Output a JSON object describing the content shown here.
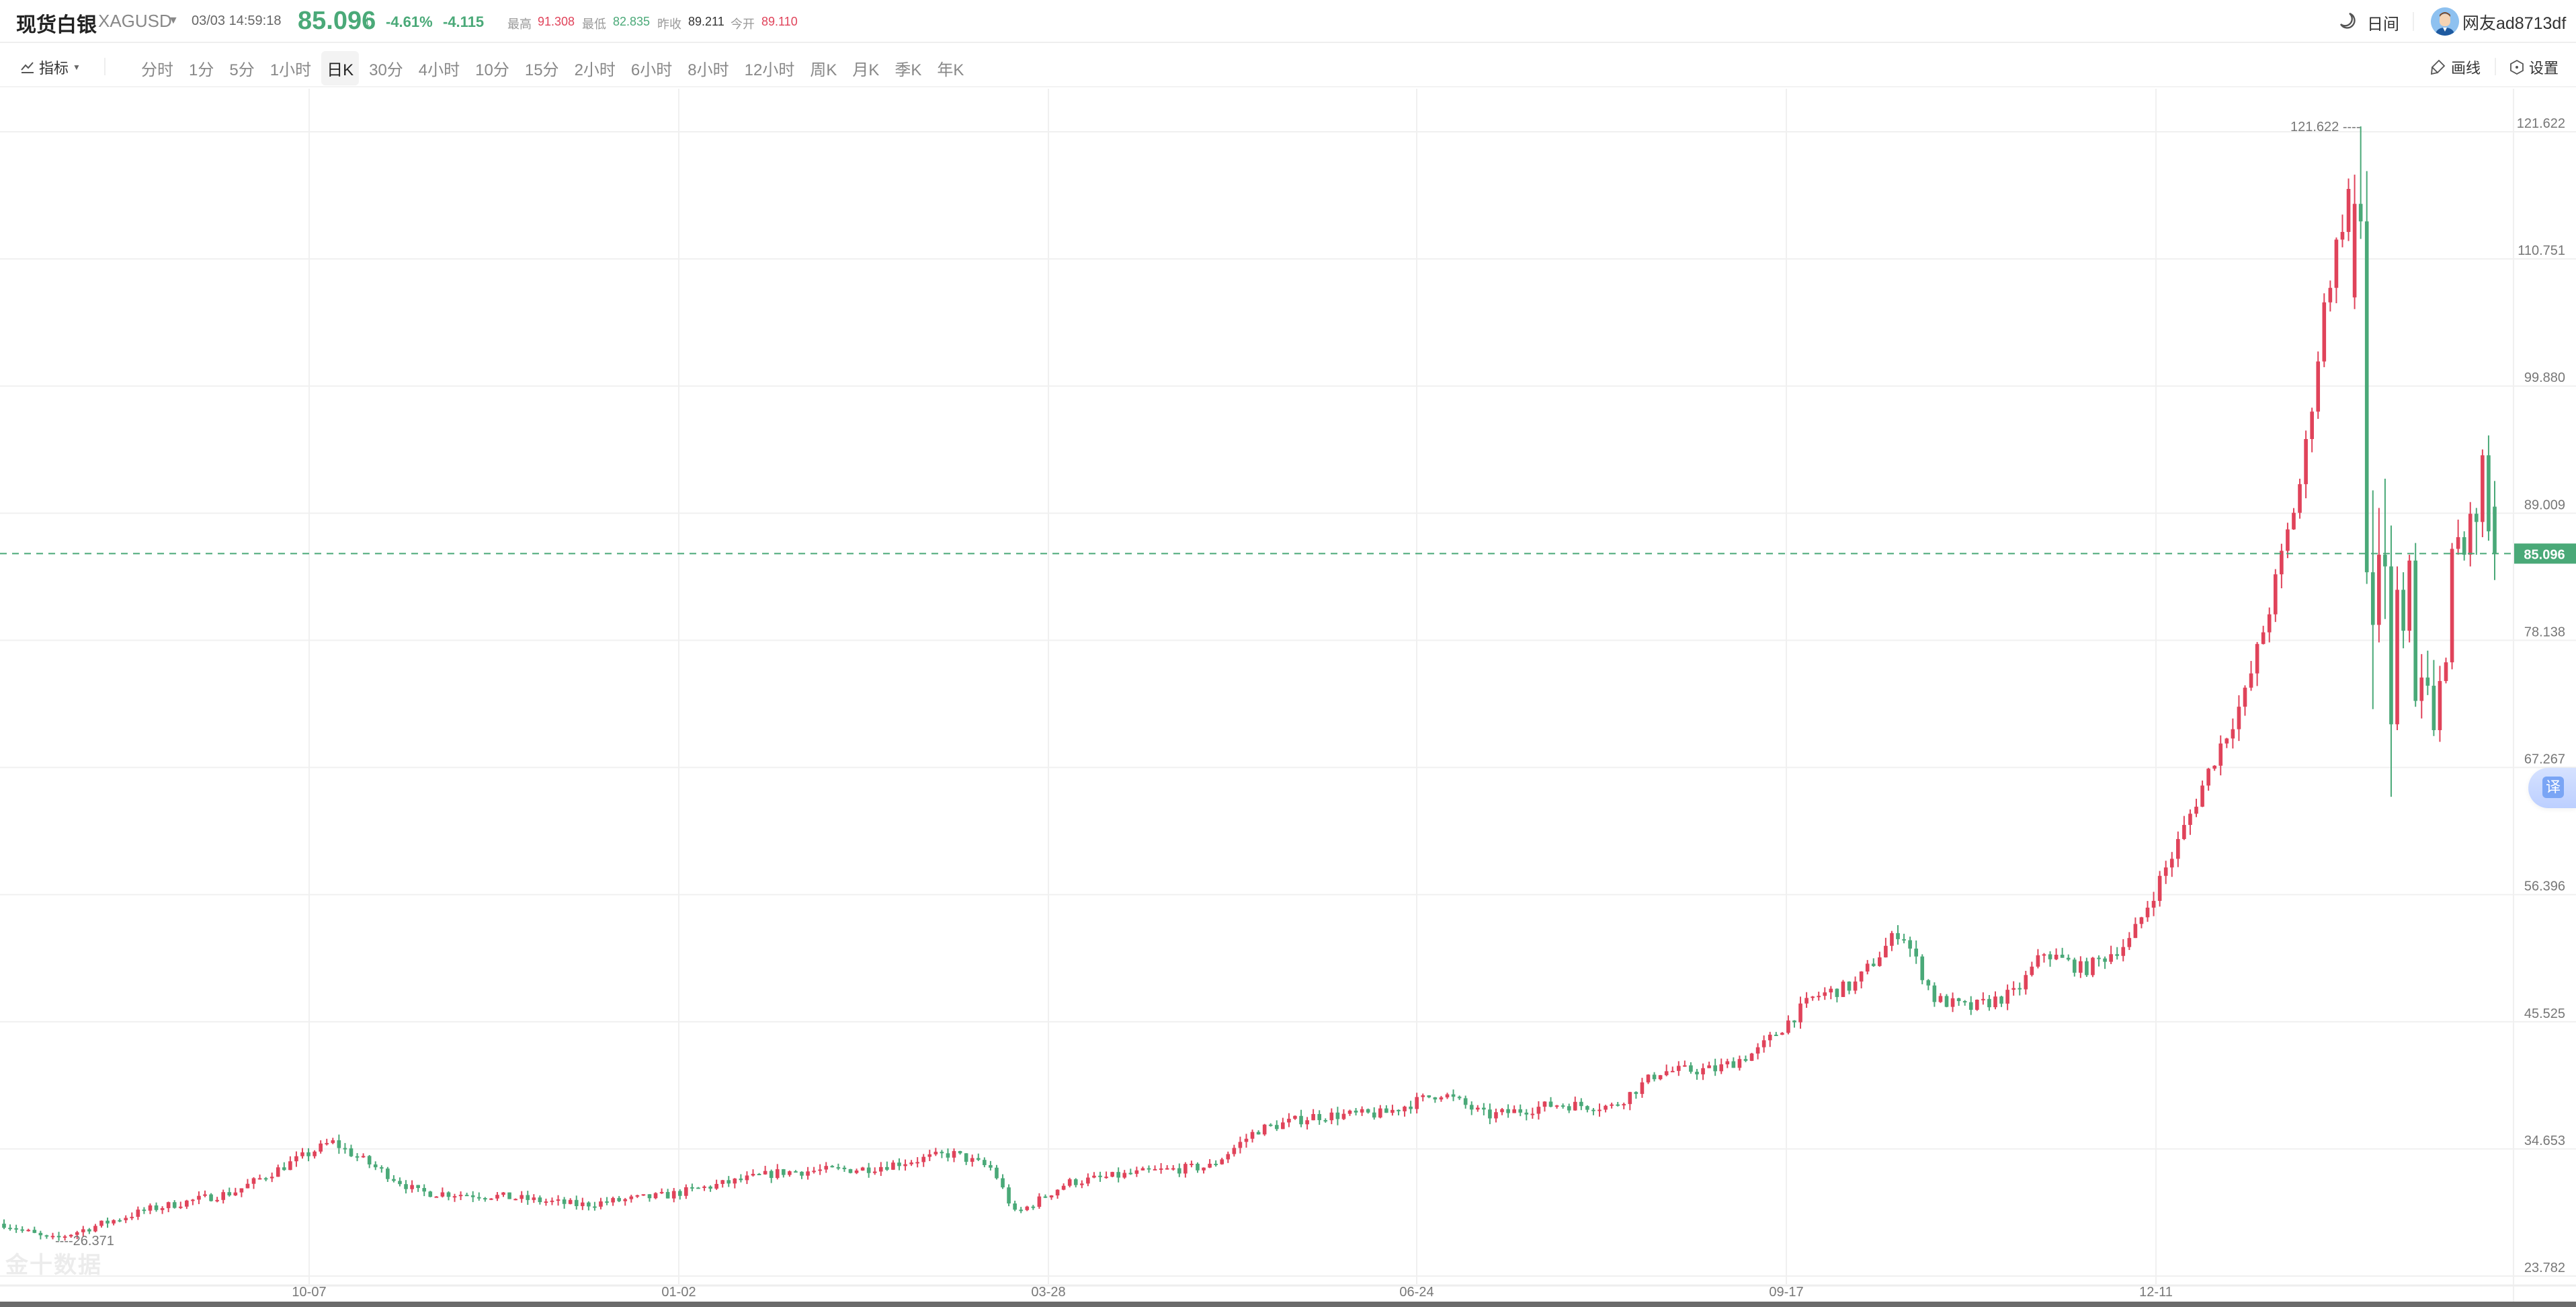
{
  "header": {
    "title": "现货白银",
    "symbol": "XAGUSD",
    "datetime": "03/03 14:59:18",
    "price": "85.096",
    "direction_icon": "arrow-down",
    "change_pct": "-4.61%",
    "change": "-4.115",
    "stats": [
      {
        "label": "最高",
        "value": "91.308",
        "color": "red"
      },
      {
        "label": "最低",
        "value": "82.835",
        "color": "green"
      },
      {
        "label": "昨收",
        "value": "89.211",
        "color": "dark"
      },
      {
        "label": "今开",
        "value": "89.110",
        "color": "red"
      }
    ],
    "theme_label": "日间",
    "theme_icon": "moon-icon",
    "username": "网友ad8713df"
  },
  "toolbar": {
    "indicator_label": "指标",
    "periods": [
      "分时",
      "1分",
      "5分",
      "1小时",
      "日K",
      "30分",
      "4小时",
      "10分",
      "15分",
      "2小时",
      "6小时",
      "8小时",
      "12小时",
      "周K",
      "月K",
      "季K",
      "年K"
    ],
    "active_period": "日K",
    "draw_label": "画线",
    "settings_label": "设置"
  },
  "translate_label": "译",
  "watermark": "金十数据",
  "colors": {
    "up": "#e0435a",
    "down": "#4aa978",
    "grid": "#f0f0f0",
    "price_tag": "#4aa978"
  },
  "chart_data": {
    "type": "candlestick",
    "title": "现货白银 XAGUSD 日K",
    "xlabel": "",
    "ylabel": "",
    "y_ticks": [
      "121.622",
      "110.751",
      "99.880",
      "89.009",
      "78.138",
      "67.267",
      "56.396",
      "45.525",
      "34.653",
      "23.782"
    ],
    "x_ticks": [
      "10-07",
      "01-02",
      "03-28",
      "06-24",
      "09-17",
      "12-11"
    ],
    "ylim": [
      23.782,
      121.622
    ],
    "current_price": "85.096",
    "max_annotation": "121.622",
    "min_annotation": "26.371",
    "grid": true,
    "up_color_meaning": "red = rise, green = fall",
    "candle_count": 410,
    "price_path_keypoints": [
      [
        0,
        27.8
      ],
      [
        8,
        26.4
      ],
      [
        25,
        29.0
      ],
      [
        40,
        30.5
      ],
      [
        57,
        34.8
      ],
      [
        72,
        30.5
      ],
      [
        85,
        30.2
      ],
      [
        100,
        29.4
      ],
      [
        115,
        30.2
      ],
      [
        135,
        32.2
      ],
      [
        150,
        32.5
      ],
      [
        165,
        33.8
      ],
      [
        172,
        32.5
      ],
      [
        176,
        28.6
      ],
      [
        185,
        31.3
      ],
      [
        200,
        32.3
      ],
      [
        210,
        32.7
      ],
      [
        218,
        35.8
      ],
      [
        228,
        37.0
      ],
      [
        240,
        37.2
      ],
      [
        250,
        39.0
      ],
      [
        258,
        37.0
      ],
      [
        270,
        38.0
      ],
      [
        280,
        37.8
      ],
      [
        288,
        40.8
      ],
      [
        298,
        41.0
      ],
      [
        305,
        42.5
      ],
      [
        315,
        47.2
      ],
      [
        322,
        48.2
      ],
      [
        330,
        53.0
      ],
      [
        336,
        47.0
      ],
      [
        342,
        46.2
      ],
      [
        350,
        47.5
      ],
      [
        355,
        51.0
      ],
      [
        362,
        49.5
      ],
      [
        370,
        52.0
      ],
      [
        378,
        60.0
      ],
      [
        385,
        68.0
      ],
      [
        390,
        73.0
      ],
      [
        394,
        80.0
      ],
      [
        400,
        92.0
      ],
      [
        404,
        107.0
      ],
      [
        408,
        116.0
      ]
    ],
    "recent_candles_ohlc": [
      [
        107.0,
        117.5,
        106.0,
        115.0
      ],
      [
        115.0,
        121.622,
        112.0,
        113.5
      ],
      [
        113.5,
        117.8,
        82.5,
        83.5
      ],
      [
        83.5,
        90.5,
        71.8,
        79.0
      ],
      [
        79.0,
        89.0,
        77.5,
        85.0
      ],
      [
        85.0,
        91.5,
        79.5,
        84.0
      ],
      [
        84.0,
        87.5,
        64.3,
        70.5
      ],
      [
        70.5,
        84.0,
        70.0,
        82.0
      ],
      [
        82.0,
        83.5,
        77.0,
        78.5
      ],
      [
        78.5,
        85.0,
        77.5,
        84.5
      ],
      [
        84.5,
        86.0,
        72.0,
        72.5
      ],
      [
        72.5,
        76.5,
        71.0,
        74.5
      ],
      [
        74.5,
        76.8,
        73.0,
        73.8
      ],
      [
        73.8,
        76.0,
        69.5,
        70.0
      ],
      [
        70.0,
        75.5,
        69.0,
        74.2
      ],
      [
        74.2,
        76.2,
        74.0,
        75.8
      ],
      [
        75.8,
        86.0,
        75.2,
        85.5
      ],
      [
        85.5,
        88.0,
        85.0,
        86.5
      ],
      [
        86.5,
        87.0,
        84.5,
        85.0
      ],
      [
        85.0,
        89.5,
        84.0,
        88.5
      ],
      [
        88.5,
        89.0,
        85.0,
        87.8
      ],
      [
        87.8,
        94.0,
        86.5,
        93.5
      ],
      [
        93.5,
        95.2,
        86.2,
        87.0
      ],
      [
        89.11,
        91.308,
        82.835,
        85.096
      ]
    ]
  }
}
